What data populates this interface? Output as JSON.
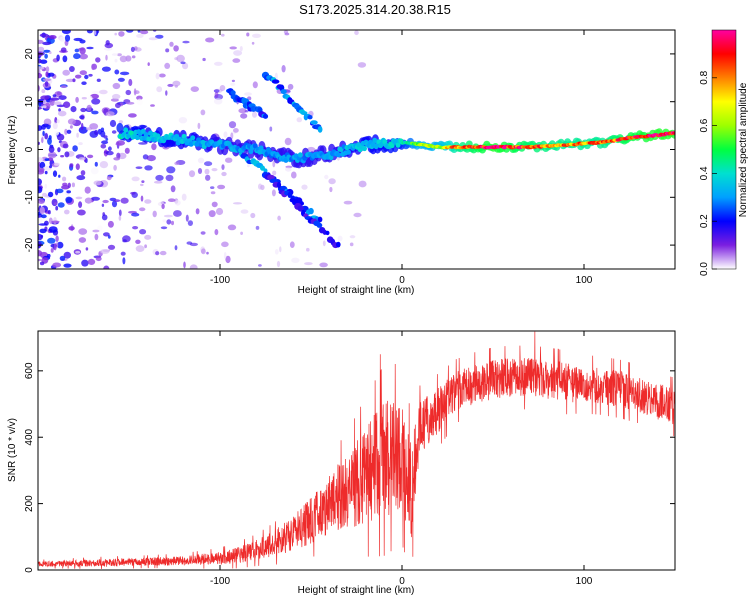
{
  "title": "S173.2025.314.20.38.R15",
  "colors": {
    "line": "#ee2b2b",
    "axis": "#000000",
    "background": "#ffffff"
  },
  "colormap": {
    "name": "rainbow",
    "stops": [
      "#ffffff",
      "#7b1fe0",
      "#0000ff",
      "#00a0ff",
      "#00e0d0",
      "#00ff40",
      "#9dff00",
      "#ffff00",
      "#ff8000",
      "#ff0000",
      "#ff00a0"
    ]
  },
  "chart_data": [
    {
      "type": "heatmap",
      "name": "spectrogram",
      "title": "S173.2025.314.20.38.R15",
      "xlabel": "Height of straight line (km)",
      "ylabel": "Frequency (Hz)",
      "xlim": [
        -200,
        150
      ],
      "ylim": [
        -25,
        25
      ],
      "x_ticks": [
        -100,
        0,
        100
      ],
      "y_ticks": [
        -20,
        -10,
        0,
        10,
        20
      ],
      "colorbar": {
        "label": "Normalized spectral amplitude",
        "range": [
          0,
          1
        ],
        "ticks": [
          "0.0",
          "0.2",
          "0.4",
          "0.6",
          "0.8"
        ]
      },
      "ridge": {
        "description": "dominant narrow band",
        "points": [
          {
            "x": -155,
            "freq": 3.5,
            "amp": 0.4
          },
          {
            "x": -140,
            "freq": 3.0,
            "amp": 0.35
          },
          {
            "x": -120,
            "freq": 2.0,
            "amp": 0.35
          },
          {
            "x": -100,
            "freq": 1.0,
            "amp": 0.3
          },
          {
            "x": -80,
            "freq": 0.0,
            "amp": 0.3
          },
          {
            "x": -60,
            "freq": -2.0,
            "amp": 0.3
          },
          {
            "x": -40,
            "freq": -1.0,
            "amp": 0.3
          },
          {
            "x": -20,
            "freq": 1.0,
            "amp": 0.35
          },
          {
            "x": 0,
            "freq": 1.5,
            "amp": 0.4
          },
          {
            "x": 10,
            "freq": 1.0,
            "amp": 0.6
          },
          {
            "x": 20,
            "freq": 0.5,
            "amp": 0.6
          },
          {
            "x": 30,
            "freq": 0.5,
            "amp": 0.8
          },
          {
            "x": 50,
            "freq": 0.5,
            "amp": 0.95
          },
          {
            "x": 70,
            "freq": 0.5,
            "amp": 0.85
          },
          {
            "x": 90,
            "freq": 1.0,
            "amp": 0.8
          },
          {
            "x": 110,
            "freq": 1.5,
            "amp": 0.8
          },
          {
            "x": 125,
            "freq": 2.5,
            "amp": 0.9
          },
          {
            "x": 140,
            "freq": 3.0,
            "amp": 0.95
          },
          {
            "x": 150,
            "freq": 3.5,
            "amp": 0.95
          }
        ]
      },
      "branches": [
        {
          "description": "upper diagonal branch",
          "from": [
            -75,
            16
          ],
          "to": [
            -45,
            4
          ],
          "amp": 0.3
        },
        {
          "description": "lower diagonal branch",
          "from": [
            -90,
            0
          ],
          "to": [
            -45,
            -15
          ],
          "amp": 0.3
        },
        {
          "description": "faint upper branch",
          "from": [
            -95,
            12
          ],
          "to": [
            -75,
            7
          ],
          "amp": 0.25
        },
        {
          "description": "lower arc branch",
          "from": [
            -75,
            -5
          ],
          "to": [
            -35,
            -20
          ],
          "amp": 0.2
        }
      ],
      "noise_region": {
        "x_range": [
          -200,
          -20
        ],
        "freq_range": [
          -25,
          25
        ],
        "amp_max": 0.25
      }
    },
    {
      "type": "line",
      "name": "snr",
      "xlabel": "Height of straight line (km)",
      "ylabel": "SNR (10 * v/v)",
      "xlim": [
        -200,
        150
      ],
      "ylim": [
        0,
        720
      ],
      "x_ticks": [
        -100,
        0,
        100
      ],
      "y_ticks": [
        0,
        200,
        400,
        600
      ],
      "envelope": {
        "x": [
          -200,
          -180,
          -160,
          -140,
          -120,
          -100,
          -90,
          -80,
          -70,
          -60,
          -50,
          -40,
          -30,
          -20,
          -10,
          0,
          5,
          10,
          20,
          30,
          40,
          50,
          60,
          70,
          80,
          90,
          100,
          110,
          120,
          130,
          140,
          150
        ],
        "mean": [
          18,
          20,
          22,
          25,
          28,
          35,
          45,
          60,
          80,
          110,
          150,
          200,
          240,
          280,
          330,
          350,
          230,
          430,
          480,
          540,
          560,
          575,
          580,
          580,
          575,
          565,
          560,
          555,
          545,
          530,
          510,
          490
        ],
        "spread": [
          8,
          10,
          12,
          12,
          14,
          20,
          25,
          30,
          40,
          55,
          70,
          90,
          110,
          150,
          180,
          170,
          150,
          80,
          70,
          60,
          60,
          60,
          60,
          60,
          60,
          60,
          55,
          55,
          55,
          55,
          55,
          55
        ]
      },
      "notable_spikes": [
        {
          "x": -12,
          "y": 650
        },
        {
          "x": 73,
          "y": 720
        },
        {
          "x": 6,
          "y": 40
        }
      ]
    }
  ]
}
